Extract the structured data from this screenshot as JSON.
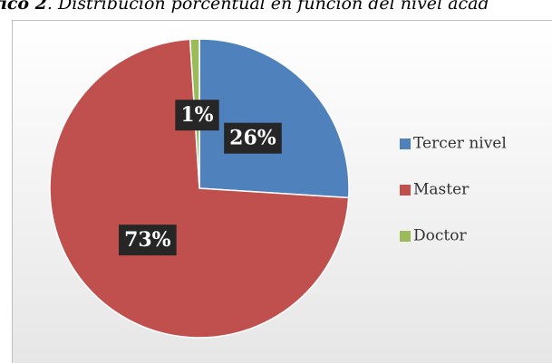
{
  "chart_data": {
    "type": "pie",
    "title_number": "fico 2",
    "title": ". Distribución porcentual en función del nivel acad",
    "categories": [
      "Tercer nivel",
      "Master",
      "Doctor"
    ],
    "values": [
      26,
      73,
      1
    ],
    "value_labels": [
      "26%",
      "73%",
      "1%"
    ],
    "colors": [
      "#4f81bd",
      "#c0504d",
      "#9bbb59"
    ],
    "legend": "right"
  }
}
